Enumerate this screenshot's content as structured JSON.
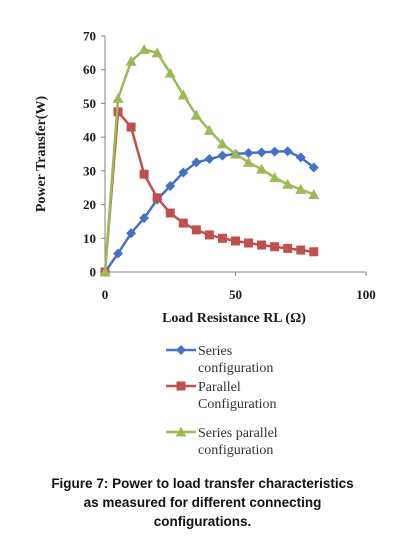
{
  "chart_data": {
    "type": "line",
    "xlabel": "Load Resistance RL (Ω)",
    "ylabel": "Power Transfer(W)",
    "xlim": [
      0,
      100
    ],
    "ylim": [
      0,
      70
    ],
    "x_ticks": [
      "0",
      "50",
      "100"
    ],
    "y_ticks": [
      "0",
      "10",
      "20",
      "30",
      "40",
      "50",
      "60",
      "70"
    ],
    "grid": false,
    "legend_position": "bottom",
    "series": [
      {
        "name": "Series configuration",
        "legend_lines": [
          "Series",
          "configuration"
        ],
        "color": "#4472C4",
        "marker": "diamond",
        "x": [
          0,
          5,
          10,
          15,
          20,
          25,
          30,
          35,
          40,
          45,
          50,
          55,
          60,
          65,
          70,
          75,
          80
        ],
        "y": [
          0,
          5.5,
          11.5,
          16,
          21.5,
          25.5,
          29.5,
          32.5,
          33.5,
          34.5,
          35,
          35.3,
          35.5,
          35.7,
          35.8,
          34,
          31
        ]
      },
      {
        "name": "Parallel Configuration",
        "legend_lines": [
          "Parallel",
          "Configuration"
        ],
        "color": "#C0504D",
        "marker": "square",
        "x": [
          0,
          5,
          10,
          15,
          20,
          25,
          30,
          35,
          40,
          45,
          50,
          55,
          60,
          65,
          70,
          75,
          80
        ],
        "y": [
          0,
          47.5,
          43,
          29,
          22,
          17.5,
          14.5,
          12.5,
          11,
          10,
          9.2,
          8.6,
          8,
          7.5,
          7,
          6.5,
          6
        ]
      },
      {
        "name": "Series parallel configuration",
        "legend_lines": [
          "Series parallel",
          "configuration"
        ],
        "color": "#9BBB59",
        "marker": "triangle",
        "x": [
          0,
          5,
          10,
          15,
          20,
          25,
          30,
          35,
          40,
          45,
          50,
          55,
          60,
          65,
          70,
          75,
          80
        ],
        "y": [
          0,
          51.5,
          62.5,
          66,
          65,
          59,
          52.5,
          46.5,
          42,
          38,
          35,
          32.5,
          30.5,
          28,
          26,
          24.5,
          23
        ]
      }
    ]
  },
  "caption_lines": [
    "Figure 7: Power to load transfer characteristics",
    "as measured for different connecting",
    "configurations."
  ]
}
